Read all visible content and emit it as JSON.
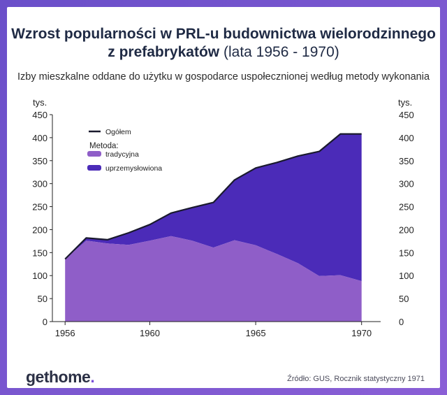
{
  "header": {
    "title_line1": "Wzrost popularności w PRL-u budownictwa wielorodzinnego",
    "title_line2_bold": "z prefabrykatów",
    "title_line2_normal": " (lata 1956 - 1970)",
    "subtitle": "Izby mieszkalne oddane do użytku w gospodarce uspołecznionej według metody wykonania"
  },
  "footer": {
    "logo_main": "gethome",
    "logo_dot": ".",
    "source": "Źródło: GUS, Rocznik statystyczny 1971"
  },
  "colors": {
    "background": "#6a4fc9",
    "tradycyjna": "#8f5ec8",
    "uprzemyslowiona": "#4b2bb8",
    "ogolem": "#1a1a2e",
    "title": "#1f2a44"
  },
  "chart_data": {
    "type": "area",
    "stacked": true,
    "x": [
      1956,
      1957,
      1958,
      1959,
      1960,
      1961,
      1962,
      1963,
      1964,
      1965,
      1966,
      1967,
      1968,
      1969,
      1970
    ],
    "xticks": [
      "1956",
      "1960",
      "1965",
      "1970"
    ],
    "ylim": [
      0,
      450
    ],
    "yticks": [
      "0",
      "50",
      "100",
      "150",
      "200",
      "250",
      "300",
      "350",
      "400",
      "450"
    ],
    "ylabel_left": "tys.",
    "ylabel_right": "tys.",
    "legend": {
      "total_label": "Ogółem",
      "method_title": "Metoda:",
      "position": "top-left"
    },
    "series": [
      {
        "name": "tradycyjna",
        "values": [
          136,
          176,
          170,
          167,
          176,
          186,
          176,
          161,
          177,
          166,
          147,
          127,
          99,
          101,
          88
        ]
      },
      {
        "name": "uprzemysłowiona",
        "values": [
          0,
          6,
          8,
          26,
          35,
          50,
          72,
          98,
          131,
          168,
          199,
          233,
          271,
          307,
          320
        ]
      }
    ],
    "total": {
      "name": "Ogółem",
      "values": [
        136,
        182,
        178,
        193,
        211,
        236,
        248,
        259,
        308,
        334,
        346,
        360,
        370,
        408,
        408
      ]
    }
  }
}
